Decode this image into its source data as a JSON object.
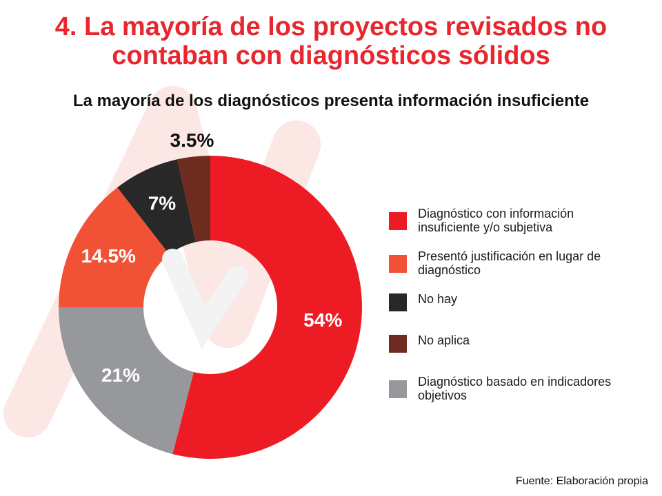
{
  "page": {
    "title_line1": "4. La mayoría de los proyectos revisados no",
    "title_line2": "contaban con diagnósticos sólidos",
    "source": "Fuente: Elaboración propia"
  },
  "chart_data": {
    "type": "pie",
    "donut": true,
    "title": "La mayoría de los diagnósticos presenta información insuficiente",
    "legend_position": "right",
    "slices": [
      {
        "label": "Diagnóstico con información insuficiente y/o subjetiva",
        "value": 54,
        "display": "54%",
        "color": "#ed1c24"
      },
      {
        "label": "Diagnóstico basado en indicadores objetivos",
        "value": 21,
        "display": "21%",
        "color": "#97989c"
      },
      {
        "label": "Presentó justificación en lugar de diagnóstico",
        "value": 14.5,
        "display": "14.5%",
        "color": "#f15236"
      },
      {
        "label": "No hay",
        "value": 7,
        "display": "7%",
        "color": "#282828"
      },
      {
        "label": "No aplica",
        "value": 3.5,
        "display": "3.5%",
        "color": "#6d2c1f"
      }
    ],
    "legend_order": [
      "Diagnóstico con información insuficiente y/o subjetiva",
      "Presentó justificación en lugar de diagnóstico",
      "No hay",
      "No aplica",
      "Diagnóstico basado en indicadores objetivos"
    ]
  }
}
